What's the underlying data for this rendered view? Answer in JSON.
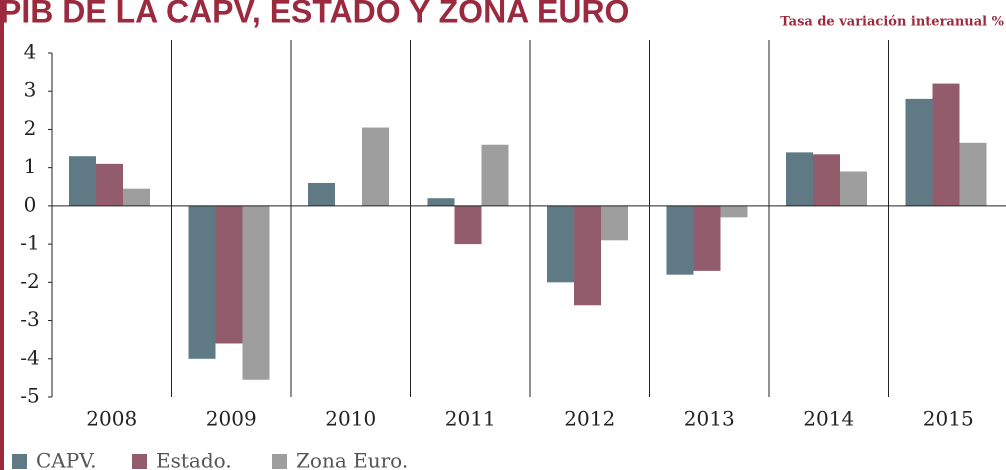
{
  "chart_data": {
    "type": "bar",
    "title": "PIB DE LA CAPV, ESTADO Y ZONA EURO",
    "subtitle": "Tasa de variación interanual %",
    "categories": [
      "2008",
      "2009",
      "2010",
      "2011",
      "2012",
      "2013",
      "2014",
      "2015"
    ],
    "series": [
      {
        "name": "CAPV.",
        "color": "#5f7a84",
        "values": [
          1.3,
          -4.0,
          0.6,
          0.2,
          -2.0,
          -1.8,
          1.4,
          2.8
        ]
      },
      {
        "name": "Estado.",
        "color": "#935c6d",
        "values": [
          1.1,
          -3.6,
          0.0,
          -1.0,
          -2.6,
          -1.7,
          1.35,
          3.2
        ]
      },
      {
        "name": "Zona Euro.",
        "color": "#9e9e9e",
        "values": [
          0.45,
          -4.55,
          2.05,
          1.6,
          -0.9,
          -0.3,
          0.9,
          1.65
        ]
      }
    ],
    "ylim": [
      -5,
      4
    ],
    "yticks": [
      -5,
      -4,
      -3,
      -2,
      -1,
      0,
      1,
      2,
      3,
      4
    ]
  }
}
